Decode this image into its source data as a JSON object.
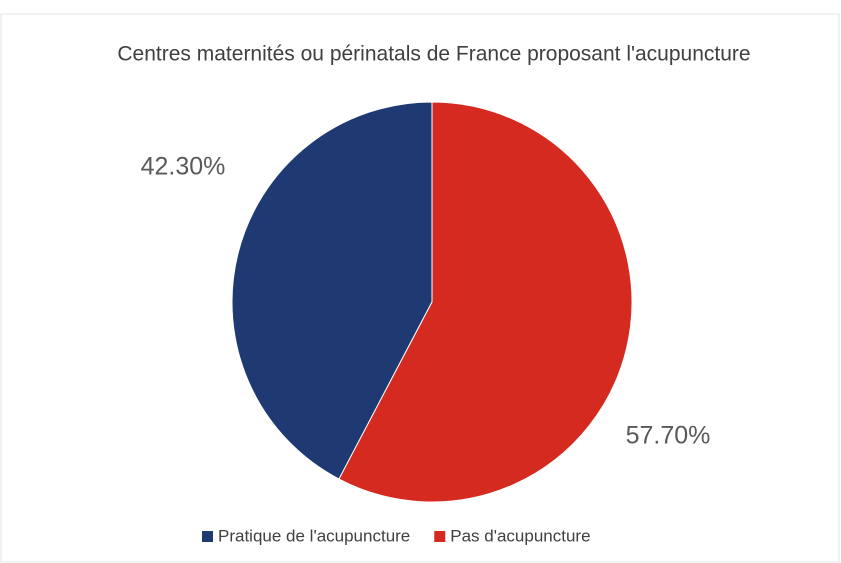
{
  "chart_data": {
    "type": "pie",
    "title": "Centres maternités ou périnatals de France proposant l'acupuncture",
    "categories": [
      "Pratique de l'acupuncture",
      "Pas d'acupuncture"
    ],
    "values": [
      42.3,
      57.7
    ],
    "value_labels": [
      "42.30%",
      "57.70%"
    ],
    "colors": [
      "#1f3a73",
      "#d42a20"
    ],
    "legend": "bottom"
  }
}
